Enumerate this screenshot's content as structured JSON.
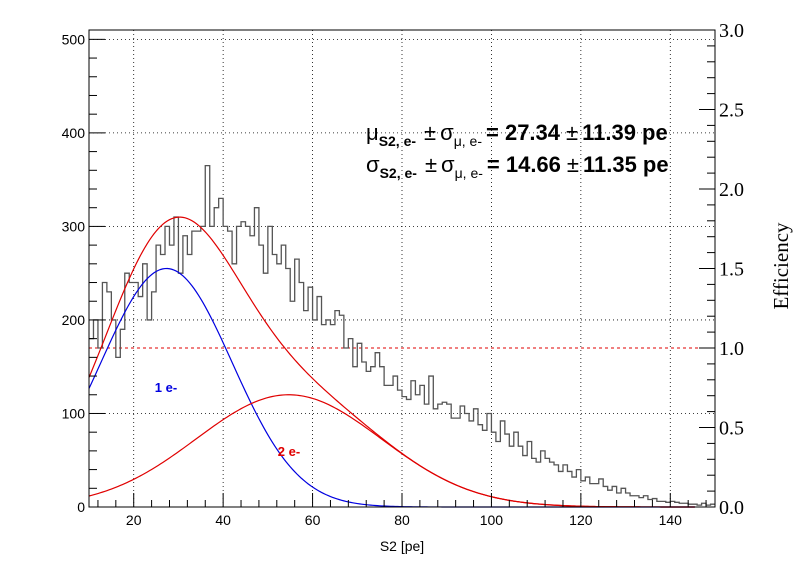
{
  "chart_data": {
    "type": "line",
    "title": "",
    "xlabel": "S2 [pe]",
    "ylabel": "",
    "y2label": "Efficiency",
    "xlim": [
      10,
      150
    ],
    "ylim": [
      0,
      510
    ],
    "y2lim": [
      0,
      3.0
    ],
    "x_ticks": [
      20,
      40,
      60,
      80,
      100,
      120,
      140
    ],
    "y_ticks": [
      0,
      100,
      200,
      300,
      400,
      500
    ],
    "y2_ticks": [
      "0.0",
      "0.5",
      "1.0",
      "1.5",
      "2.0",
      "2.5",
      "3.0"
    ],
    "grid": true,
    "colors": {
      "histogram": "#555555",
      "total_fit": "#e00000",
      "one_e": "#0000e0",
      "two_e": "#e00000",
      "efficiency": "#e00000"
    },
    "annotations": {
      "one_e_label": "1 e-",
      "two_e_label": "2 e-",
      "mu_line": {
        "sym1": "μ",
        "sub1": "S2, e-",
        "pm1": "±",
        "sym2": "σ",
        "sub2": "μ, e-",
        "value": "= 27.34",
        "pm2": "±",
        "error": "11.39 pe"
      },
      "sigma_line": {
        "sym1": "σ",
        "sub1": "S2, e-",
        "pm1": "±",
        "sym2": "σ",
        "sub2": "μ, e-",
        "value": "= 14.66",
        "pm2": "±",
        "error": "11.35 pe"
      }
    },
    "efficiency_level": 1.0,
    "histogram": {
      "bin_start": 10,
      "bin_width": 1,
      "counts": [
        180,
        200,
        170,
        240,
        230,
        200,
        160,
        190,
        250,
        240,
        240,
        225,
        260,
        200,
        230,
        280,
        270,
        300,
        280,
        310,
        250,
        290,
        270,
        295,
        295,
        300,
        365,
        300,
        320,
        330,
        300,
        295,
        260,
        300,
        305,
        300,
        290,
        320,
        280,
        250,
        300,
        270,
        260,
        280,
        255,
        220,
        265,
        240,
        210,
        235,
        200,
        225,
        195,
        200,
        195,
        210,
        205,
        170,
        180,
        150,
        175,
        155,
        145,
        150,
        165,
        150,
        130,
        130,
        140,
        125,
        118,
        115,
        135,
        120,
        130,
        110,
        140,
        105,
        110,
        112,
        110,
        95,
        95,
        108,
        100,
        92,
        105,
        88,
        82,
        100,
        80,
        70,
        92,
        78,
        65,
        80,
        65,
        55,
        70,
        52,
        48,
        60,
        52,
        48,
        45,
        38,
        45,
        38,
        32,
        40,
        28,
        32,
        25,
        25,
        30,
        22,
        18,
        22,
        15,
        20,
        15,
        12,
        12,
        10,
        12,
        8,
        9,
        6,
        6,
        5,
        6,
        5,
        4,
        4,
        3,
        3,
        2,
        4,
        2,
        3,
        2,
        1,
        3,
        2,
        2,
        1,
        1,
        2,
        1,
        1,
        0,
        1,
        0,
        1,
        0,
        0,
        1,
        0,
        0,
        0,
        1,
        0,
        0,
        0,
        1,
        0,
        0,
        0,
        0,
        0,
        0,
        1,
        0,
        0,
        0,
        0,
        0,
        0,
        0,
        0,
        0,
        0,
        0,
        0,
        0,
        0,
        0,
        0,
        0,
        1,
        0,
        0,
        0,
        0,
        0,
        0,
        0,
        0,
        0,
        0,
        0,
        0,
        0,
        0,
        0,
        0,
        0,
        0,
        0,
        0,
        0,
        0,
        0,
        0,
        0,
        0,
        0,
        0,
        0,
        0,
        0,
        0,
        0,
        0,
        0,
        0,
        0,
        0,
        0,
        0,
        0,
        0,
        0,
        0,
        0,
        0,
        0,
        0,
        0,
        0,
        0,
        0,
        0,
        0,
        0,
        0,
        0,
        0,
        0,
        0,
        0,
        0,
        0,
        0,
        0,
        0,
        0,
        0,
        0,
        0,
        0,
        0,
        0,
        0,
        0,
        0,
        0,
        0,
        0,
        0,
        0,
        0,
        0,
        0,
        0,
        0,
        0,
        0,
        0,
        0,
        0,
        0,
        0,
        0,
        0,
        0,
        0,
        0,
        0,
        0,
        0,
        0,
        0,
        0,
        0,
        0,
        0,
        0,
        0,
        0,
        0,
        0,
        0,
        0,
        0,
        0,
        0,
        0,
        0,
        0,
        0,
        0,
        0,
        0,
        0,
        0,
        0,
        0,
        0,
        0,
        0,
        0,
        0,
        0,
        0,
        0,
        0,
        0,
        0,
        0,
        0,
        0,
        0,
        0,
        0,
        0,
        0,
        0,
        0,
        0,
        0
      ]
    },
    "fits": {
      "one_e": {
        "amplitude": 255,
        "mean": 27.34,
        "sigma": 14.66
      },
      "two_e": {
        "amplitude": 120,
        "mean": 54.68,
        "sigma": 20.73
      }
    }
  }
}
